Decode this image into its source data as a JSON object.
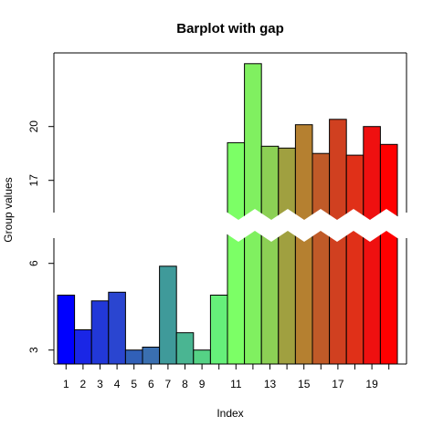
{
  "chart_data": {
    "type": "bar",
    "title": "Barplot with gap",
    "xlabel": "Index",
    "ylabel": "Group values",
    "x": [
      1,
      2,
      3,
      4,
      5,
      6,
      7,
      8,
      9,
      10,
      11,
      12,
      13,
      14,
      15,
      16,
      17,
      18,
      19,
      20
    ],
    "values": [
      4.9,
      3.7,
      4.7,
      5.0,
      3.0,
      3.1,
      5.9,
      3.6,
      3.0,
      4.9,
      19.1,
      23.5,
      18.9,
      18.8,
      20.1,
      18.5,
      20.4,
      18.4,
      20.0,
      19.0
    ],
    "colors": [
      "#0000ff",
      "#1a26e6",
      "#2238d8",
      "#2a45d0",
      "#3160b8",
      "#3a6fb0",
      "#3f9a9a",
      "#4ab592",
      "#55d285",
      "#66f07a",
      "#7cff66",
      "#80f060",
      "#8cd055",
      "#a0a040",
      "#b58030",
      "#c05a28",
      "#d04020",
      "#e03018",
      "#ef1010",
      "#ff0000"
    ],
    "xticks": [
      "1",
      "2",
      "3",
      "4",
      "5",
      "6",
      "7",
      "8",
      "9",
      "11",
      "13",
      "15",
      "17",
      "19"
    ],
    "yticks": [
      "3",
      "6",
      "17",
      "20"
    ],
    "gap": [
      7,
      15
    ],
    "grid": false
  }
}
